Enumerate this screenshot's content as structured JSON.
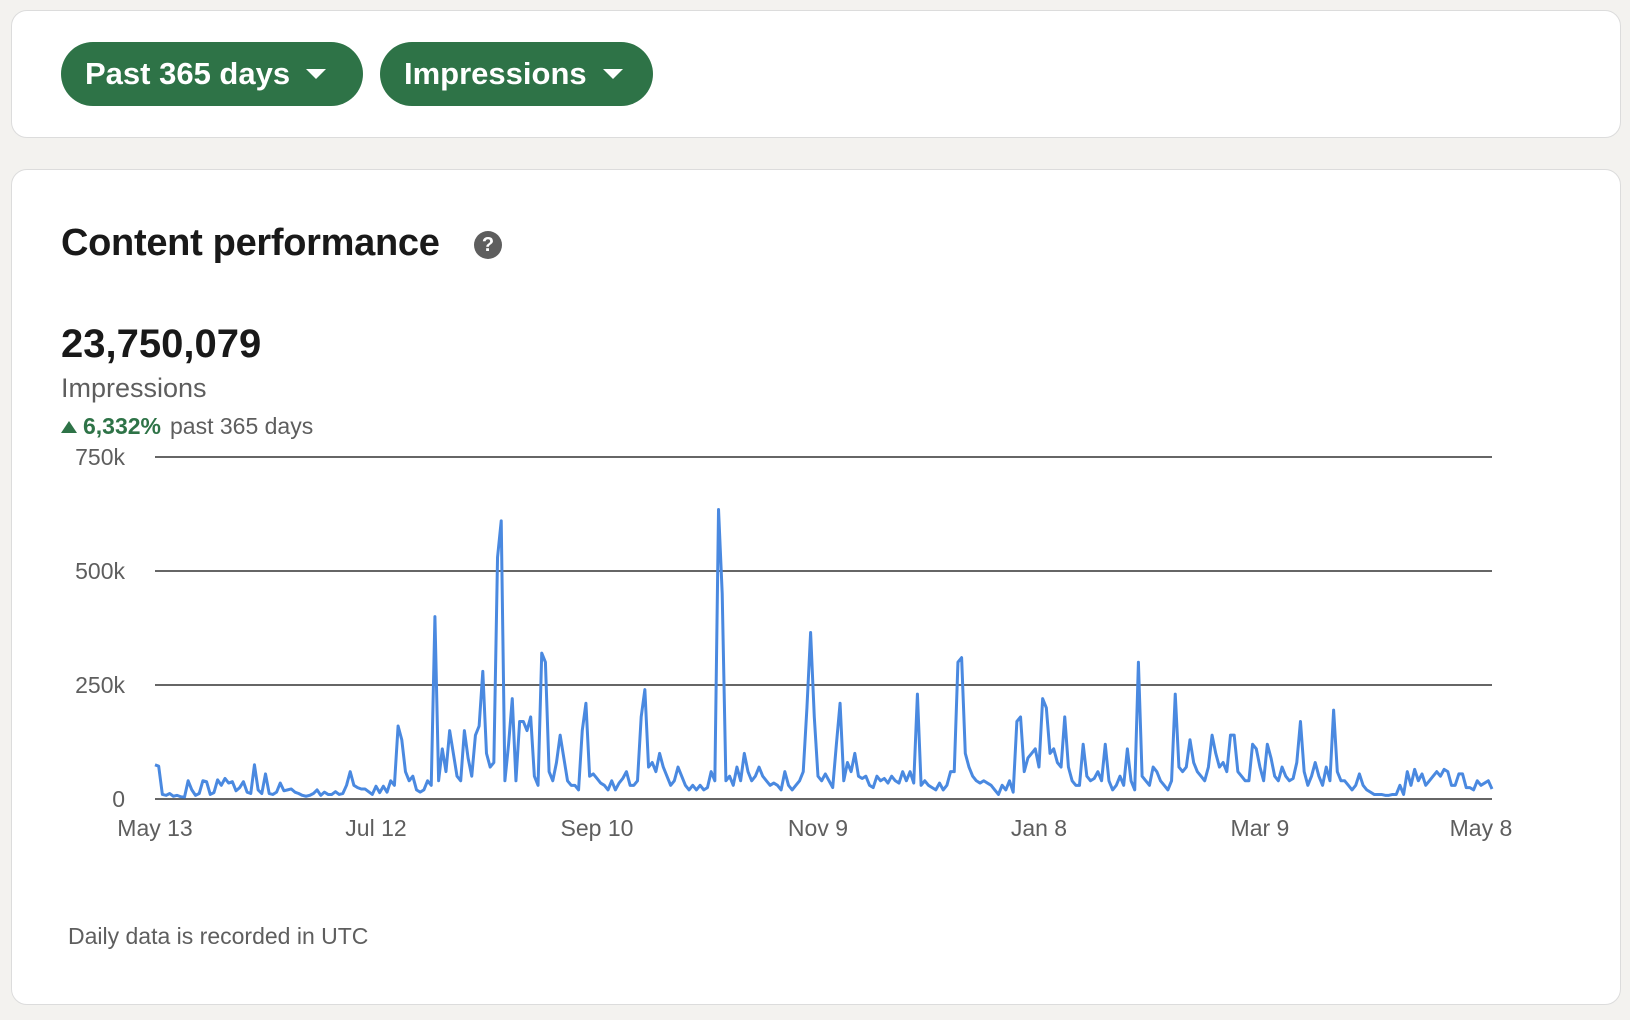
{
  "filters": {
    "range_label": "Past 365 days",
    "metric_label": "Impressions"
  },
  "card": {
    "title": "Content performance",
    "help_icon_label": "?",
    "total_value": "23,750,079",
    "metric_name": "Impressions",
    "change_percent": "6,332%",
    "change_period": "past 365 days",
    "footnote": "Daily data is recorded in UTC"
  },
  "colors": {
    "accent_green": "#2e7347",
    "line_blue": "#4a89e0",
    "gridline": "#333333"
  },
  "icons": {
    "dropdown": "chevron-down-icon",
    "help": "question-circle-icon",
    "trend": "triangle-up-icon"
  },
  "chart_data": {
    "type": "line",
    "title": "",
    "xlabel": "",
    "ylabel": "",
    "ylim": [
      0,
      750000
    ],
    "yticks": [
      0,
      250000,
      500000,
      750000
    ],
    "ytick_labels": [
      "0",
      "250k",
      "500k",
      "750k"
    ],
    "xticks": [
      0,
      60,
      120,
      180,
      240,
      300,
      360
    ],
    "xtick_labels": [
      "May 13",
      "Jul 12",
      "Sep 10",
      "Nov 9",
      "Jan 8",
      "Mar 9",
      "May 8"
    ],
    "grid": true,
    "legend": "none",
    "x_start": "May 13",
    "series": [
      {
        "values": [
          75000,
          72000,
          10000,
          8000,
          12000,
          6000,
          8000,
          5000,
          4000,
          40000,
          20000,
          8000,
          12000,
          40000,
          38000,
          10000,
          14000,
          42000,
          30000,
          45000,
          35000,
          38000,
          18000,
          25000,
          38000,
          15000,
          12000,
          75000,
          20000,
          12000,
          55000,
          12000,
          10000,
          15000,
          35000,
          18000,
          20000,
          22000,
          15000,
          12000,
          8000,
          6000,
          8000,
          12000,
          20000,
          8000,
          15000,
          10000,
          10000,
          16000,
          10000,
          12000,
          30000,
          60000,
          30000,
          25000,
          22000,
          22000,
          16000,
          10000,
          28000,
          14000,
          28000,
          15000,
          40000,
          30000,
          160000,
          130000,
          60000,
          40000,
          50000,
          20000,
          15000,
          20000,
          40000,
          30000,
          400000,
          40000,
          110000,
          60000,
          150000,
          100000,
          50000,
          40000,
          150000,
          90000,
          50000,
          140000,
          160000,
          280000,
          100000,
          70000,
          80000,
          530000,
          610000,
          40000,
          120000,
          220000,
          40000,
          170000,
          170000,
          150000,
          180000,
          50000,
          30000,
          320000,
          300000,
          60000,
          40000,
          80000,
          140000,
          90000,
          40000,
          30000,
          30000,
          20000,
          150000,
          210000,
          50000,
          55000,
          45000,
          35000,
          30000,
          20000,
          40000,
          20000,
          35000,
          45000,
          60000,
          30000,
          30000,
          40000,
          180000,
          240000,
          70000,
          80000,
          60000,
          100000,
          70000,
          50000,
          30000,
          40000,
          70000,
          50000,
          30000,
          20000,
          30000,
          20000,
          30000,
          20000,
          25000,
          60000,
          40000,
          635000,
          450000,
          40000,
          50000,
          30000,
          70000,
          40000,
          100000,
          60000,
          40000,
          50000,
          70000,
          50000,
          40000,
          30000,
          35000,
          30000,
          20000,
          60000,
          30000,
          20000,
          30000,
          40000,
          60000,
          200000,
          365000,
          180000,
          50000,
          40000,
          55000,
          40000,
          25000,
          120000,
          210000,
          40000,
          80000,
          60000,
          100000,
          50000,
          45000,
          50000,
          30000,
          25000,
          50000,
          40000,
          45000,
          35000,
          50000,
          40000,
          35000,
          60000,
          40000,
          60000,
          35000,
          230000,
          30000,
          40000,
          30000,
          25000,
          20000,
          35000,
          20000,
          30000,
          60000,
          60000,
          300000,
          310000,
          100000,
          70000,
          50000,
          40000,
          35000,
          40000,
          35000,
          30000,
          20000,
          10000,
          30000,
          20000,
          40000,
          15000,
          170000,
          180000,
          60000,
          90000,
          100000,
          110000,
          70000,
          220000,
          200000,
          100000,
          110000,
          80000,
          70000,
          180000,
          70000,
          40000,
          30000,
          30000,
          120000,
          50000,
          40000,
          45000,
          60000,
          40000,
          120000,
          40000,
          20000,
          30000,
          50000,
          30000,
          110000,
          40000,
          20000,
          300000,
          50000,
          40000,
          30000,
          70000,
          60000,
          40000,
          30000,
          20000,
          40000,
          230000,
          70000,
          60000,
          70000,
          130000,
          80000,
          60000,
          50000,
          40000,
          70000,
          140000,
          100000,
          70000,
          80000,
          60000,
          140000,
          140000,
          60000,
          50000,
          40000,
          40000,
          120000,
          110000,
          70000,
          40000,
          120000,
          90000,
          50000,
          40000,
          70000,
          50000,
          40000,
          45000,
          80000,
          170000,
          60000,
          30000,
          50000,
          80000,
          50000,
          30000,
          70000,
          40000,
          195000,
          60000,
          40000,
          40000,
          30000,
          20000,
          30000,
          55000,
          30000,
          20000,
          15000,
          10000,
          10000,
          10000,
          8000,
          8000,
          10000,
          10000,
          30000,
          10000,
          60000,
          30000,
          65000,
          40000,
          55000,
          30000,
          40000,
          50000,
          60000,
          50000,
          65000,
          60000,
          30000,
          30000,
          55000,
          55000,
          25000,
          25000,
          20000,
          40000,
          30000,
          35000,
          40000,
          22000
        ]
      }
    ]
  }
}
